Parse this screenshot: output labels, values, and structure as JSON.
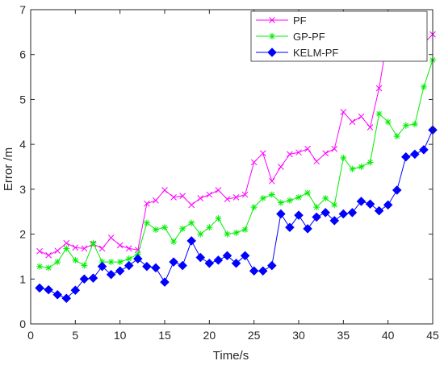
{
  "chart_data": {
    "type": "line",
    "xlabel": "Time/s",
    "ylabel": "Error /m",
    "xlim": [
      0,
      45
    ],
    "ylim": [
      0,
      7
    ],
    "xticks": [
      0,
      5,
      10,
      15,
      20,
      25,
      30,
      35,
      40,
      45
    ],
    "yticks": [
      0,
      1,
      2,
      3,
      4,
      5,
      6,
      7
    ],
    "grid": false,
    "legend_position": "top-right",
    "x": [
      1,
      2,
      3,
      4,
      5,
      6,
      7,
      8,
      9,
      10,
      11,
      12,
      13,
      14,
      15,
      16,
      17,
      18,
      19,
      20,
      21,
      22,
      23,
      24,
      25,
      26,
      27,
      28,
      29,
      30,
      31,
      32,
      33,
      34,
      35,
      36,
      37,
      38,
      39,
      40,
      41,
      42,
      43,
      44,
      45
    ],
    "series": [
      {
        "name": "PF",
        "color": "#ff00ff",
        "marker": "x",
        "values": [
          1.62,
          1.53,
          1.63,
          1.8,
          1.7,
          1.68,
          1.78,
          1.68,
          1.92,
          1.75,
          1.68,
          1.65,
          2.68,
          2.75,
          2.98,
          2.82,
          2.85,
          2.65,
          2.8,
          2.88,
          2.98,
          2.78,
          2.82,
          2.88,
          3.6,
          3.8,
          3.18,
          3.5,
          3.78,
          3.82,
          3.9,
          3.62,
          3.8,
          3.9,
          4.72,
          4.5,
          4.62,
          4.38,
          5.25,
          6.45,
          6.62,
          6.42,
          6.15,
          6.25,
          6.45
        ]
      },
      {
        "name": "GP-PF",
        "color": "#00ee00",
        "marker": "asterisk",
        "values": [
          1.28,
          1.25,
          1.38,
          1.68,
          1.42,
          1.3,
          1.8,
          1.38,
          1.38,
          1.38,
          1.45,
          1.55,
          2.25,
          2.1,
          2.15,
          1.83,
          2.12,
          2.25,
          2.0,
          2.15,
          2.35,
          2.0,
          2.03,
          2.1,
          2.6,
          2.8,
          2.88,
          2.7,
          2.75,
          2.82,
          2.92,
          2.6,
          2.8,
          2.65,
          3.7,
          3.45,
          3.5,
          3.6,
          4.68,
          4.5,
          4.18,
          4.42,
          4.45,
          5.28,
          5.88
        ]
      },
      {
        "name": "KELM-PF",
        "color": "#0000ff",
        "marker": "diamond",
        "values": [
          0.8,
          0.76,
          0.65,
          0.57,
          0.75,
          1.0,
          1.02,
          1.28,
          1.1,
          1.18,
          1.3,
          1.45,
          1.28,
          1.25,
          0.93,
          1.38,
          1.3,
          1.85,
          1.48,
          1.35,
          1.42,
          1.52,
          1.35,
          1.52,
          1.18,
          1.18,
          1.3,
          2.45,
          2.15,
          2.42,
          2.12,
          2.38,
          2.48,
          2.3,
          2.45,
          2.48,
          2.73,
          2.67,
          2.52,
          2.65,
          2.98,
          3.72,
          3.78,
          3.88,
          4.32
        ]
      }
    ]
  }
}
